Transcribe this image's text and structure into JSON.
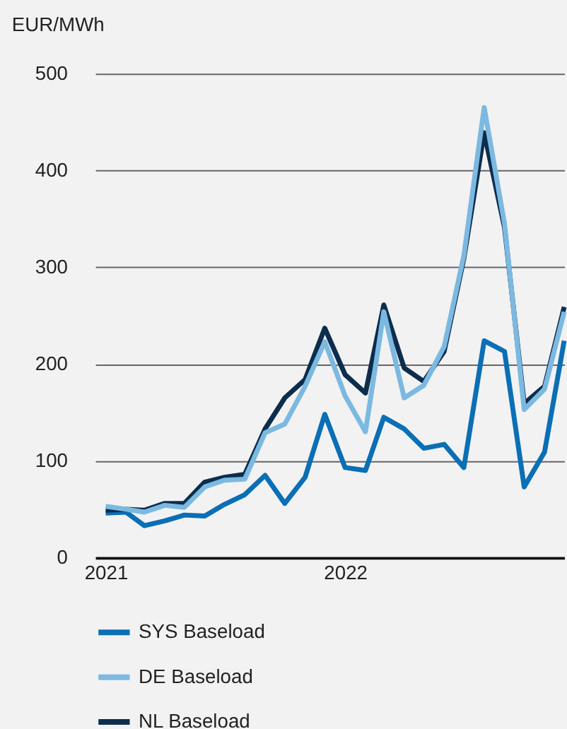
{
  "chart_data": {
    "type": "line",
    "ylabel": "EUR/MWh",
    "x": [
      "2021-01",
      "2021-02",
      "2021-03",
      "2021-04",
      "2021-05",
      "2021-06",
      "2021-07",
      "2021-08",
      "2021-09",
      "2021-10",
      "2021-11",
      "2021-12",
      "2022-01",
      "2022-02",
      "2022-03",
      "2022-04",
      "2022-05",
      "2022-06",
      "2022-07",
      "2022-08",
      "2022-09",
      "2022-10",
      "2022-11",
      "2022-12"
    ],
    "series": [
      {
        "name": "SYS Baseload",
        "color": "#0a6fb5",
        "values": [
          46,
          47,
          33,
          38,
          44,
          43,
          55,
          65,
          85,
          56,
          83,
          148,
          93,
          90,
          145,
          133,
          113,
          117,
          93,
          224,
          213,
          73,
          109,
          224
        ]
      },
      {
        "name": "DE Baseload",
        "color": "#7cb9e1",
        "values": [
          53,
          50,
          47,
          54,
          52,
          73,
          80,
          81,
          129,
          138,
          177,
          223,
          167,
          130,
          254,
          165,
          178,
          218,
          312,
          465,
          345,
          153,
          174,
          254
        ]
      },
      {
        "name": "NL Baseload",
        "color": "#0c2d4d",
        "values": [
          49,
          50,
          49,
          56,
          56,
          78,
          83,
          86,
          133,
          165,
          184,
          237,
          189,
          170,
          261,
          196,
          182,
          213,
          309,
          439,
          341,
          159,
          177,
          259
        ]
      }
    ],
    "xlim": [
      "2020-12-16",
      "2022-12-01"
    ],
    "xticks": [
      {
        "value": "2021-01",
        "label": "2021"
      },
      {
        "value": "2022-01",
        "label": "2022"
      }
    ],
    "ylim": [
      0,
      500
    ],
    "yticks": [
      0,
      100,
      200,
      300,
      400,
      500
    ],
    "grid": "y",
    "legend": "bottom",
    "marker": "none",
    "line_style": "solid"
  }
}
